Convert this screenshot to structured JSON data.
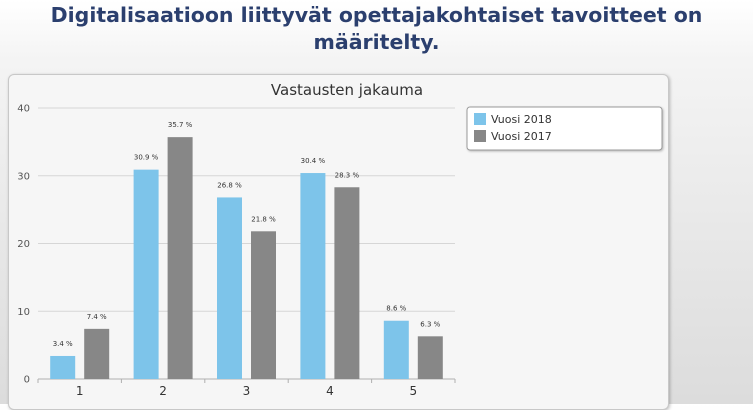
{
  "page": {
    "title": "Digitalisaatioon liittyvät opettajakohtaiset tavoitteet on määritelty."
  },
  "chart_data": {
    "type": "bar",
    "title": "Vastausten jakauma",
    "xlabel": "",
    "ylabel": "",
    "categories": [
      "1",
      "2",
      "3",
      "4",
      "5"
    ],
    "ylim": [
      0,
      40
    ],
    "yticks": [
      0,
      10,
      20,
      30,
      40
    ],
    "grid": true,
    "legend_position": "top-right",
    "series": [
      {
        "name": "Vuosi 2018",
        "color": "#7dc4ea",
        "values": [
          3.4,
          30.9,
          26.8,
          30.4,
          8.6
        ],
        "labels": [
          "3.4 %",
          "30.9 %",
          "26.8 %",
          "30.4 %",
          "8.6 %"
        ]
      },
      {
        "name": "Vuosi 2017",
        "color": "#878787",
        "values": [
          7.4,
          35.7,
          21.8,
          28.3,
          6.3
        ],
        "labels": [
          "7.4 %",
          "35.7 %",
          "21.8 %",
          "28.3 %",
          "6.3 %"
        ]
      }
    ]
  }
}
